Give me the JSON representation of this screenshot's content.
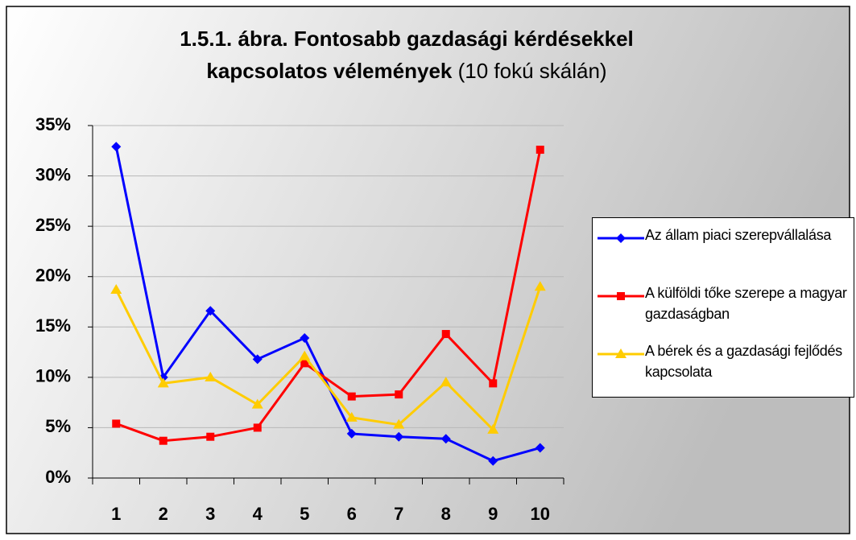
{
  "chart_data": {
    "type": "line",
    "title": "1.5.1. ábra. Fontosabb gazdasági kérdésekkel kapcsolatos vélemények",
    "subtitle": "(10 fokú skálán)",
    "categories": [
      "1",
      "2",
      "3",
      "4",
      "5",
      "6",
      "7",
      "8",
      "9",
      "10"
    ],
    "series": [
      {
        "name": "Az állam piaci szerepvállalása",
        "color": "#0000ff",
        "marker": "diamond",
        "values": [
          32.9,
          10.0,
          16.6,
          11.8,
          13.9,
          4.4,
          4.1,
          3.9,
          1.7,
          3.0
        ]
      },
      {
        "name": "A külföldi tőke szerepe a magyar gazdaságban",
        "color": "#ff0000",
        "marker": "square",
        "values": [
          5.4,
          3.7,
          4.1,
          5.0,
          11.4,
          8.1,
          8.3,
          14.3,
          9.4,
          32.6
        ]
      },
      {
        "name": "A bérek és a gazdasági fejlődés kapcsolata",
        "color": "#ffcc00",
        "marker": "triangle",
        "values": [
          18.7,
          9.4,
          10.0,
          7.3,
          12.1,
          6.0,
          5.3,
          9.5,
          4.8,
          19.0
        ]
      }
    ],
    "ylim": [
      0,
      35
    ],
    "yticks": [
      {
        "value": 0,
        "label": "0%"
      },
      {
        "value": 5,
        "label": "5%"
      },
      {
        "value": 10,
        "label": "10%"
      },
      {
        "value": 15,
        "label": "15%"
      },
      {
        "value": 20,
        "label": "20%"
      },
      {
        "value": 25,
        "label": "25%"
      },
      {
        "value": 30,
        "label": "30%"
      },
      {
        "value": 35,
        "label": "35%"
      }
    ],
    "grid": true,
    "legend": "right"
  }
}
